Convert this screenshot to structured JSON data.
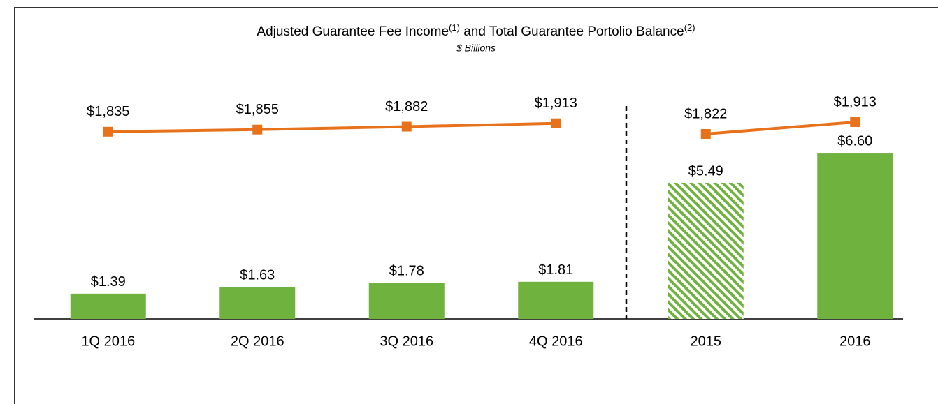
{
  "chart_data": [
    {
      "type": "bar",
      "title": [
        "Adjusted Guarantee Fee Income",
        "(1)",
        " and Total Guarantee Portolio Balance",
        "(2)"
      ],
      "subtitle": "$ Billions",
      "categories": [
        "1Q 2016",
        "2Q 2016",
        "3Q 2016",
        "4Q 2016"
      ],
      "ylim": [
        0.5,
        8.8
      ],
      "y2lim": [
        100,
        2280
      ],
      "series": [
        {
          "type": "bar",
          "color": "#70b23e",
          "values": [
            1.39,
            1.63,
            1.78,
            1.81
          ],
          "value_labels": [
            "$1.39",
            "$1.63",
            "$1.78",
            "$1.81"
          ],
          "styles": [
            "solid",
            "solid",
            "solid",
            "solid"
          ]
        },
        {
          "type": "line",
          "axis": "y2",
          "color": "#e8711c",
          "values": [
            1835,
            1855,
            1882,
            1913
          ],
          "value_labels": [
            "$1,835",
            "$1,855",
            "$1,882",
            "$1,913"
          ]
        }
      ]
    },
    {
      "type": "bar",
      "categories": [
        "2015",
        "2016"
      ],
      "ylim": [
        0.45,
        9.16
      ],
      "y2lim": [
        405,
        2207
      ],
      "series": [
        {
          "type": "bar",
          "color": "#70b23e",
          "values": [
            5.49,
            6.6
          ],
          "value_labels": [
            "$5.49",
            "$6.60"
          ],
          "styles": [
            "hatched",
            "solid"
          ]
        },
        {
          "type": "line",
          "axis": "y2",
          "color": "#e8711c",
          "values": [
            1822,
            1913
          ],
          "value_labels": [
            "$1,822",
            "$1,913"
          ]
        }
      ]
    }
  ]
}
